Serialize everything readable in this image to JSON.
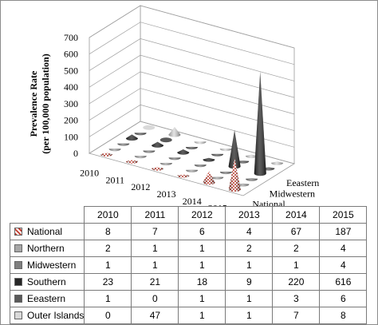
{
  "chart_data": {
    "type": "bar",
    "subtype": "3d-cone",
    "ylabel": "Prevalence Rate\n(per 100,000 population)",
    "ylim": [
      0,
      700
    ],
    "yticks": [
      "0",
      "100",
      "200",
      "300",
      "400",
      "500",
      "600",
      "700"
    ],
    "categories": [
      "2010",
      "2011",
      "2012",
      "2013",
      "2014",
      "2015"
    ],
    "depth_labels": [
      "National",
      "Midwestern",
      "Eeastern"
    ],
    "series": [
      {
        "name": "National",
        "values": [
          8,
          7,
          6,
          4,
          67,
          187
        ],
        "color": "#c0392b",
        "pattern": "checker-red"
      },
      {
        "name": "Northern",
        "values": [
          2,
          1,
          1,
          2,
          2,
          4
        ],
        "color": "#a6a6a6"
      },
      {
        "name": "Midwestern",
        "values": [
          1,
          1,
          1,
          1,
          1,
          4
        ],
        "color": "#7f7f7f"
      },
      {
        "name": "Southern",
        "values": [
          23,
          21,
          18,
          9,
          220,
          616
        ],
        "color": "#262626"
      },
      {
        "name": "Eeastern",
        "values": [
          1,
          0,
          1,
          1,
          3,
          6
        ],
        "color": "#595959"
      },
      {
        "name": "Outer Islands",
        "values": [
          0,
          47,
          1,
          1,
          7,
          8
        ],
        "color": "#d9d9d9"
      }
    ],
    "grid": true,
    "legend": "data-table-below"
  }
}
